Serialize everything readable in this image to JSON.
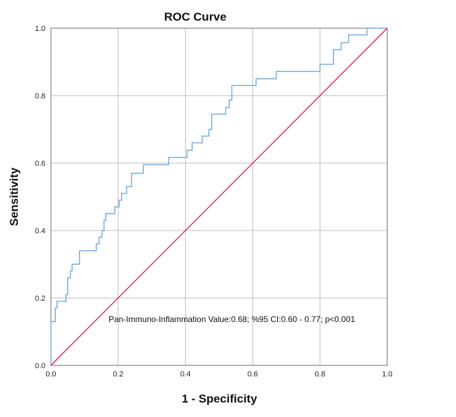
{
  "chart_data": {
    "type": "line",
    "title": "ROC Curve",
    "xlabel": "1 - Specificity",
    "ylabel": "Sensitivity",
    "xlim": [
      0,
      1
    ],
    "ylim": [
      0,
      1
    ],
    "grid": true,
    "x_ticks": [
      "0.0",
      "0.2",
      "0.4",
      "0.6",
      "0.8",
      "1.0"
    ],
    "y_ticks": [
      "0.0",
      "0.2",
      "0.4",
      "0.6",
      "0.8",
      "1.0"
    ],
    "annotation": "Pan-Immuno-Inflammation Value:0.68; %95 CI:0.60 - 0.77; p<0.001",
    "series": [
      {
        "name": "ROC curve",
        "color": "#6fa8dc",
        "step": true,
        "points": [
          [
            0.0,
            0.0
          ],
          [
            0.0,
            0.13
          ],
          [
            0.013,
            0.13
          ],
          [
            0.013,
            0.17
          ],
          [
            0.018,
            0.17
          ],
          [
            0.018,
            0.19
          ],
          [
            0.045,
            0.19
          ],
          [
            0.045,
            0.21
          ],
          [
            0.05,
            0.21
          ],
          [
            0.05,
            0.26
          ],
          [
            0.058,
            0.26
          ],
          [
            0.058,
            0.28
          ],
          [
            0.063,
            0.28
          ],
          [
            0.063,
            0.3
          ],
          [
            0.085,
            0.3
          ],
          [
            0.085,
            0.34
          ],
          [
            0.135,
            0.34
          ],
          [
            0.135,
            0.36
          ],
          [
            0.143,
            0.36
          ],
          [
            0.143,
            0.38
          ],
          [
            0.152,
            0.38
          ],
          [
            0.152,
            0.4
          ],
          [
            0.158,
            0.4
          ],
          [
            0.158,
            0.43
          ],
          [
            0.163,
            0.43
          ],
          [
            0.163,
            0.45
          ],
          [
            0.19,
            0.45
          ],
          [
            0.19,
            0.47
          ],
          [
            0.203,
            0.47
          ],
          [
            0.203,
            0.49
          ],
          [
            0.21,
            0.49
          ],
          [
            0.21,
            0.51
          ],
          [
            0.225,
            0.51
          ],
          [
            0.225,
            0.53
          ],
          [
            0.24,
            0.53
          ],
          [
            0.24,
            0.57
          ],
          [
            0.275,
            0.57
          ],
          [
            0.275,
            0.595
          ],
          [
            0.35,
            0.595
          ],
          [
            0.35,
            0.617
          ],
          [
            0.405,
            0.617
          ],
          [
            0.405,
            0.638
          ],
          [
            0.42,
            0.638
          ],
          [
            0.42,
            0.66
          ],
          [
            0.45,
            0.66
          ],
          [
            0.45,
            0.68
          ],
          [
            0.47,
            0.68
          ],
          [
            0.47,
            0.7
          ],
          [
            0.478,
            0.7
          ],
          [
            0.478,
            0.745
          ],
          [
            0.52,
            0.745
          ],
          [
            0.52,
            0.765
          ],
          [
            0.53,
            0.765
          ],
          [
            0.53,
            0.787
          ],
          [
            0.538,
            0.787
          ],
          [
            0.538,
            0.83
          ],
          [
            0.61,
            0.83
          ],
          [
            0.61,
            0.85
          ],
          [
            0.67,
            0.85
          ],
          [
            0.67,
            0.872
          ],
          [
            0.8,
            0.872
          ],
          [
            0.8,
            0.893
          ],
          [
            0.84,
            0.893
          ],
          [
            0.84,
            0.936
          ],
          [
            0.863,
            0.936
          ],
          [
            0.863,
            0.957
          ],
          [
            0.885,
            0.957
          ],
          [
            0.885,
            0.98
          ],
          [
            0.94,
            0.98
          ],
          [
            0.94,
            1.0
          ],
          [
            1.0,
            1.0
          ]
        ]
      },
      {
        "name": "Reference line",
        "color": "#e8366a",
        "step": false,
        "points": [
          [
            0.0,
            0.0
          ],
          [
            1.0,
            1.0
          ]
        ]
      }
    ]
  }
}
